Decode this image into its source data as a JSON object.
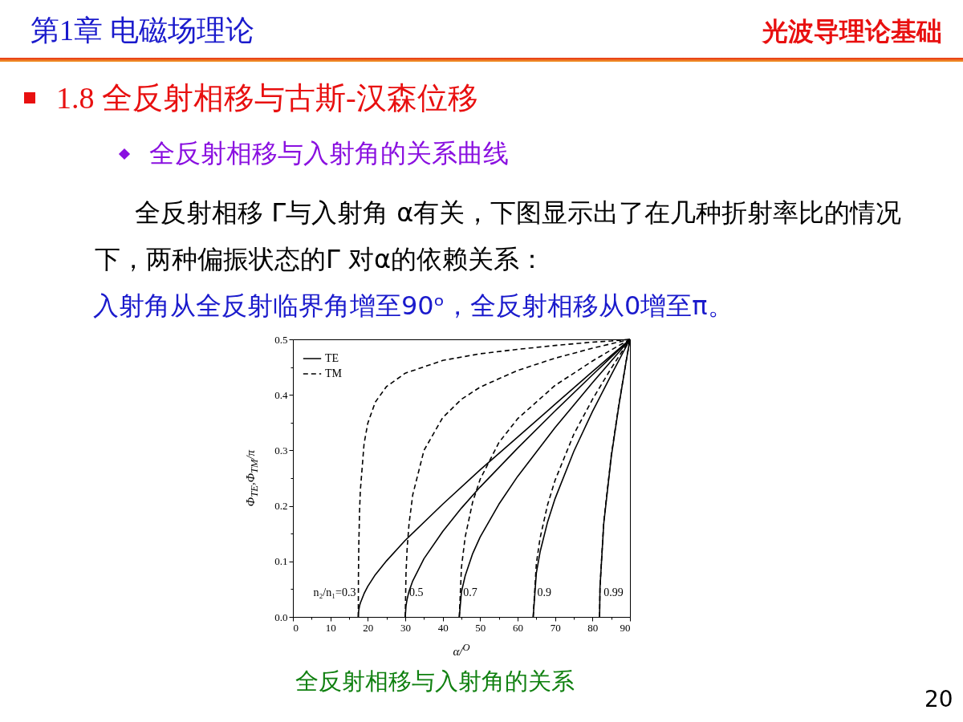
{
  "chart_data": {
    "type": "line",
    "title": "第1章 电磁场理论",
    "subtitle": "1.8 全反射相移与古斯-汉森位移",
    "xlabel": "α/$^{O}$",
    "ylabel": "Φ$_{TE}$,Φ$_{TM}$/π",
    "annotations": [
      "光波导理论基础",
      "全反射相移与入射角的关系曲线",
      "全反射相移 Γ与入射角 α有关，下图显示出了在几种折射率比的情况下，两种偏振状态的Γ 对α的依赖关系：",
      "入射角从全反射临界角增至90ᵒ，全反射相移从0增至π。",
      "全反射相移与入射角的关系",
      "20",
      {
        "text": "n₂/n₁=0.3",
        "x": 17.46,
        "y": 0
      },
      {
        "text": "0.5",
        "x": 30,
        "y": 0
      },
      {
        "text": "0.7",
        "x": 44.43,
        "y": 0
      },
      {
        "text": "0.9",
        "x": 64.16,
        "y": 0
      },
      {
        "text": "0.99",
        "x": 81.89,
        "y": 0
      }
    ],
    "xlim": [
      0,
      90
    ],
    "ylim": [
      0,
      0.5
    ],
    "xticks": [
      0,
      {
        "value": 5,
        "label": null
      },
      10,
      {
        "value": 15,
        "label": null
      },
      20,
      {
        "value": 25,
        "label": null
      },
      30,
      {
        "value": 35,
        "label": null
      },
      40,
      {
        "value": 45,
        "label": null
      },
      50,
      {
        "value": 55,
        "label": null
      },
      60,
      {
        "value": 65,
        "label": null
      },
      70,
      {
        "value": 75,
        "label": null
      },
      80,
      {
        "value": 85,
        "label": null
      },
      90
    ],
    "yticks": [
      {
        "value": 0,
        "label": "0.0"
      },
      {
        "value": 0.05,
        "label": null
      },
      0.1,
      {
        "value": 0.15,
        "label": null
      },
      0.2,
      {
        "value": 0.25,
        "label": null
      },
      0.3,
      {
        "value": 0.35,
        "label": null
      },
      0.4,
      {
        "value": 0.45,
        "label": null
      },
      0.5
    ],
    "grid": false,
    "legend": "top left",
    "marker": "none",
    "series": [
      {
        "name": "TE",
        "color": "#000000",
        "line_style": "solid",
        "x": [
          17.46,
          17.5,
          17.6,
          17.8,
          18,
          19,
          20,
          22,
          25,
          30,
          40,
          50,
          60,
          70,
          80,
          85,
          90
        ],
        "values": [
          0,
          0.007,
          0.013,
          0.02,
          0.025,
          0.042,
          0.055,
          0.076,
          0.101,
          0.138,
          0.203,
          0.265,
          0.324,
          0.383,
          0.442,
          0.471,
          0.5
        ]
      },
      {
        "name": "TM",
        "color": "#000000",
        "line_style": "dashed",
        "x": [
          17.46,
          17.5,
          17.6,
          17.8,
          18,
          19,
          20,
          22,
          25,
          30,
          40,
          50,
          60,
          70,
          80,
          85,
          90
        ],
        "values": [
          0,
          0.075,
          0.132,
          0.191,
          0.227,
          0.312,
          0.349,
          0.387,
          0.415,
          0.439,
          0.462,
          0.474,
          0.482,
          0.489,
          0.495,
          0.497,
          0.5
        ]
      },
      {
        "color": "#000000",
        "line_style": "solid",
        "x": [
          30,
          30.2,
          30.5,
          31,
          32,
          35,
          40,
          45,
          50,
          60,
          70,
          80,
          85,
          90
        ],
        "values": [
          0,
          0.02,
          0.032,
          0.046,
          0.065,
          0.105,
          0.154,
          0.196,
          0.234,
          0.304,
          0.371,
          0.436,
          0.468,
          0.5
        ]
      },
      {
        "color": "#000000",
        "line_style": "dashed",
        "x": [
          30,
          30.2,
          30.5,
          31,
          32,
          35,
          40,
          45,
          50,
          60,
          70,
          80,
          85,
          90
        ],
        "values": [
          0,
          0.079,
          0.123,
          0.167,
          0.22,
          0.3,
          0.359,
          0.392,
          0.414,
          0.444,
          0.466,
          0.484,
          0.492,
          0.5
        ]
      },
      {
        "color": "#000000",
        "line_style": "solid",
        "x": [
          44.43,
          45,
          46,
          48,
          50,
          55,
          60,
          70,
          80,
          85,
          90
        ],
        "values": [
          0,
          0.045,
          0.074,
          0.114,
          0.144,
          0.203,
          0.253,
          0.341,
          0.422,
          0.461,
          0.5
        ]
      },
      {
        "color": "#000000",
        "line_style": "dashed",
        "x": [
          44.43,
          45,
          46,
          48,
          50,
          55,
          60,
          70,
          80,
          85,
          90
        ],
        "values": [
          0,
          0.089,
          0.144,
          0.207,
          0.248,
          0.314,
          0.357,
          0.417,
          0.461,
          0.481,
          0.5
        ]
      },
      {
        "color": "#000000",
        "line_style": "solid",
        "x": [
          64.16,
          65,
          66,
          68,
          70,
          75,
          80,
          85,
          90
        ],
        "values": [
          0,
          0.079,
          0.117,
          0.171,
          0.213,
          0.298,
          0.37,
          0.436,
          0.5
        ]
      },
      {
        "color": "#000000",
        "line_style": "dashed",
        "x": [
          64.16,
          65,
          66,
          68,
          70,
          75,
          80,
          85,
          90
        ],
        "values": [
          0,
          0.096,
          0.142,
          0.202,
          0.246,
          0.329,
          0.392,
          0.448,
          0.5
        ]
      },
      {
        "color": "#000000",
        "line_style": "solid",
        "x": [
          81.89,
          82,
          83,
          85,
          87,
          89,
          90
        ],
        "values": [
          0,
          0.053,
          0.168,
          0.288,
          0.379,
          0.461,
          0.5
        ]
      },
      {
        "color": "#000000",
        "line_style": "dashed",
        "x": [
          81.89,
          82,
          83,
          85,
          87,
          89,
          90
        ],
        "values": [
          0,
          0.054,
          0.171,
          0.291,
          0.381,
          0.461,
          0.5
        ]
      }
    ]
  }
}
